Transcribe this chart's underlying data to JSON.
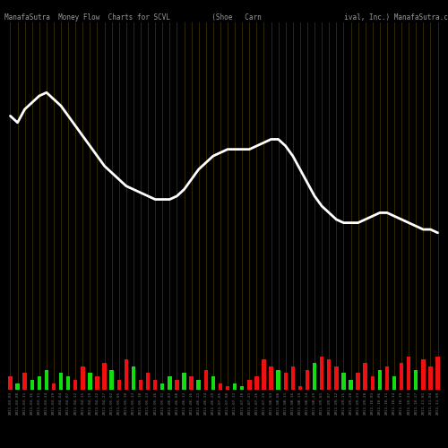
{
  "title": "ManafaSutra  Money Flow  Charts for SCVL          (Shoe   Carn                    ival, Inc.) ManafaSutra.co",
  "background_color": "#000000",
  "line_color": "#ffffff",
  "bar_color_red": "#ee1111",
  "bar_color_green": "#11dd11",
  "vertical_line_color": "#3a2e00",
  "num_bars": 60,
  "bar_heights": [
    4,
    2,
    5,
    3,
    4,
    6,
    2,
    5,
    4,
    3,
    7,
    5,
    4,
    8,
    6,
    3,
    9,
    7,
    3,
    5,
    3,
    2,
    4,
    3,
    5,
    4,
    3,
    6,
    4,
    2,
    1,
    2,
    1,
    3,
    4,
    9,
    7,
    6,
    5,
    7,
    1,
    6,
    8,
    10,
    9,
    7,
    5,
    3,
    5,
    8,
    4,
    6,
    7,
    4,
    8,
    10,
    6,
    9,
    7,
    10
  ],
  "bar_colors": [
    "r",
    "g",
    "r",
    "g",
    "g",
    "g",
    "r",
    "g",
    "g",
    "r",
    "r",
    "g",
    "r",
    "r",
    "g",
    "r",
    "r",
    "g",
    "r",
    "r",
    "r",
    "g",
    "g",
    "r",
    "g",
    "r",
    "g",
    "r",
    "g",
    "r",
    "r",
    "g",
    "g",
    "r",
    "r",
    "r",
    "r",
    "g",
    "r",
    "r",
    "r",
    "r",
    "g",
    "r",
    "r",
    "r",
    "g",
    "g",
    "r",
    "r",
    "r",
    "g",
    "r",
    "g",
    "r",
    "r",
    "g",
    "r",
    "r",
    "r"
  ],
  "line_y": [
    82,
    80,
    84,
    86,
    88,
    89,
    87,
    85,
    82,
    79,
    76,
    73,
    70,
    67,
    65,
    63,
    61,
    60,
    59,
    58,
    57,
    57,
    57,
    58,
    60,
    63,
    66,
    68,
    70,
    71,
    72,
    72,
    72,
    72,
    73,
    74,
    75,
    75,
    73,
    70,
    66,
    62,
    58,
    55,
    53,
    51,
    50,
    50,
    50,
    51,
    52,
    53,
    53,
    52,
    51,
    50,
    49,
    48,
    48,
    47
  ],
  "xlabels": [
    "2011-03-03",
    "2011-03-08",
    "2011-03-11",
    "2011-03-16",
    "2011-03-21",
    "2011-03-24",
    "2011-03-29",
    "2011-04-04",
    "2011-04-07",
    "2011-04-12",
    "2011-04-15",
    "2011-04-19",
    "2011-04-22",
    "2011-04-27",
    "2011-05-02",
    "2011-05-05",
    "2011-05-10",
    "2011-05-13",
    "2011-05-18",
    "2011-05-23",
    "2011-05-26",
    "2011-05-31",
    "2011-06-03",
    "2011-06-08",
    "2011-06-13",
    "2011-06-16",
    "2011-06-21",
    "2011-06-24",
    "2011-06-29",
    "2011-07-05",
    "2011-07-08",
    "2011-07-13",
    "2011-07-18",
    "2011-07-21",
    "2011-07-26",
    "2011-07-29",
    "2011-08-03",
    "2011-08-08",
    "2011-08-11",
    "2011-08-16",
    "2011-08-19",
    "2011-08-24",
    "2011-08-29",
    "2011-09-01",
    "2011-09-07",
    "2011-09-12",
    "2011-09-15",
    "2011-09-20",
    "2011-09-23",
    "2011-09-28",
    "2011-10-03",
    "2011-10-06",
    "2011-10-11",
    "2011-10-14",
    "2011-10-19",
    "2011-10-24",
    "2011-10-27",
    "2011-11-01",
    "2011-11-04",
    "2011-11-09"
  ],
  "ylim_max": 110,
  "title_fontsize": 5.5,
  "title_color": "#999999",
  "tick_fontsize": 3.2,
  "tick_color": "#777777"
}
